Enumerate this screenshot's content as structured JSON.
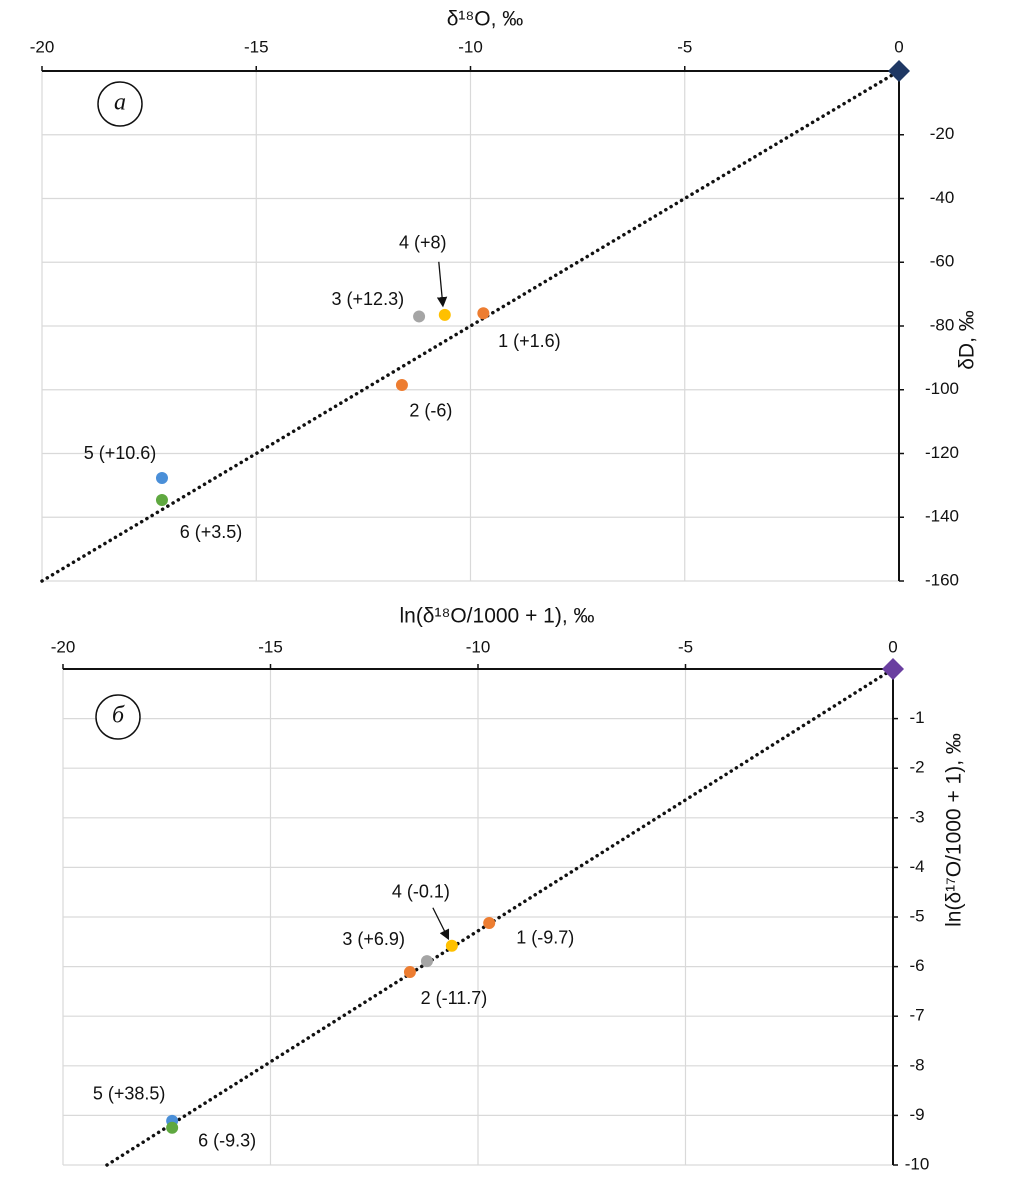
{
  "chart_data": [
    {
      "type": "scatter",
      "panel_label": "а",
      "x_label": "δ¹⁸O, ‰",
      "y_label": "δD, ‰",
      "xlim": [
        -20,
        0
      ],
      "xticks": [
        -20,
        -15,
        -10,
        -5,
        0
      ],
      "ylim": [
        -160,
        0
      ],
      "yticks": [
        -20,
        -40,
        -60,
        -80,
        -100,
        -120,
        -140,
        -160
      ],
      "grid": true,
      "x": [
        -9.7,
        -11.6,
        -11.2,
        -10.6,
        -17.2,
        -17.2
      ],
      "values": [
        -76,
        -98.5,
        -77,
        -76.5,
        -127.7,
        -134.6
      ],
      "annotations": [
        "1 (+1.6)",
        "2 (-6)",
        "3 (+12.3)",
        "4 (+8)",
        "5 (+10.6)",
        "6 (+3.5)"
      ],
      "colors": [
        "#ed7d31",
        "#ed7d31",
        "#a5a5a5",
        "#ffc000",
        "#4a8fd8",
        "#5fa840"
      ],
      "reference_line": {
        "x": [
          -20,
          0
        ],
        "y": [
          -160,
          0
        ],
        "color": "#111111"
      },
      "origin_marker": {
        "x": 0,
        "y": 0,
        "color": "#1f3864"
      }
    },
    {
      "type": "scatter",
      "panel_label": "б",
      "x_label": "ln(δ¹⁸O/1000 + 1), ‰",
      "y_label": "ln(δ¹⁷O/1000 + 1), ‰",
      "xlim": [
        -20,
        0
      ],
      "xticks": [
        -20,
        -15,
        -10,
        -5,
        0
      ],
      "ylim": [
        -10,
        0
      ],
      "yticks": [
        -1,
        -2,
        -3,
        -4,
        -5,
        -6,
        -7,
        -8,
        -9,
        -10
      ],
      "grid": true,
      "x": [
        -9.73,
        -11.64,
        -11.23,
        -10.63,
        -17.37,
        -17.37
      ],
      "values": [
        -5.12,
        -6.11,
        -5.89,
        -5.58,
        -9.11,
        -9.25
      ],
      "annotations": [
        "1 (-9.7)",
        "2 (-11.7)",
        "3 (+6.9)",
        "4 (-0.1)",
        "5 (+38.5)",
        "6 (-9.3)"
      ],
      "colors": [
        "#ed7d31",
        "#ed7d31",
        "#a5a5a5",
        "#ffc000",
        "#4a8fd8",
        "#5fa840"
      ],
      "reference_line": {
        "x": [
          -18.94,
          0
        ],
        "y": [
          -10,
          0
        ],
        "color": "#111111"
      },
      "origin_marker": {
        "x": 0,
        "y": 0,
        "color": "#6a3fa0"
      }
    }
  ]
}
